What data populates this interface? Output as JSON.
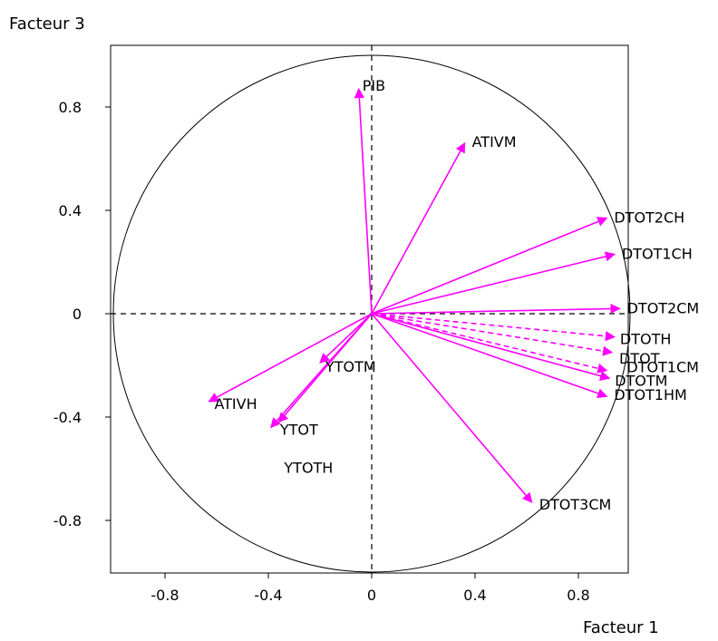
{
  "chart_data": {
    "type": "scatter",
    "title": "",
    "xlabel": "Facteur 1",
    "ylabel": "Facteur 3",
    "xlim": [
      -1.02,
      1.0
    ],
    "ylim": [
      -1.0,
      1.02
    ],
    "x_ticks": [
      "-0.8",
      "-0.4",
      "0",
      "0.4",
      "0.8"
    ],
    "y_ticks": [
      "0.8",
      "0.4",
      "0",
      "-0.4",
      "-0.8"
    ],
    "grid": false,
    "correlation_circle": true,
    "arrow_color": "#ff00ff",
    "variables": [
      {
        "name": "PIB",
        "x": -0.05,
        "y": 0.87
      },
      {
        "name": "ATIVM",
        "x": 0.36,
        "y": 0.66
      },
      {
        "name": "DTOT2CH",
        "x": 0.91,
        "y": 0.37
      },
      {
        "name": "DTOT1CH",
        "x": 0.94,
        "y": 0.23
      },
      {
        "name": "DTOT2CM",
        "x": 0.96,
        "y": 0.02
      },
      {
        "name": "DTOTH",
        "x": 0.94,
        "y": -0.09
      },
      {
        "name": "DTOT",
        "x": 0.93,
        "y": -0.15
      },
      {
        "name": "DTOTM",
        "x": 0.92,
        "y": -0.25
      },
      {
        "name": "DTOT1CM",
        "x": 0.91,
        "y": -0.22
      },
      {
        "name": "DTOT1HM",
        "x": 0.91,
        "y": -0.32
      },
      {
        "name": "DTOT3CM",
        "x": 0.62,
        "y": -0.73
      },
      {
        "name": "ATIVH",
        "x": -0.63,
        "y": -0.34
      },
      {
        "name": "YTOTM",
        "x": -0.2,
        "y": -0.19
      },
      {
        "name": "YTOT",
        "x": -0.39,
        "y": -0.44
      },
      {
        "name": "YTOTH",
        "x": -0.36,
        "y": -0.42
      }
    ]
  }
}
